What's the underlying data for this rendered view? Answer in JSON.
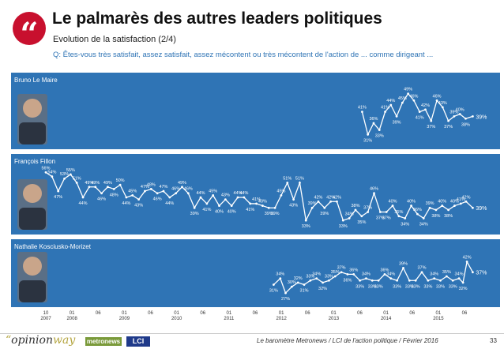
{
  "header": {
    "quote_glyph": "“",
    "title": "Le palmarès des autres leaders politiques",
    "subtitle": "Evolution de la satisfaction (2/4)",
    "question": "Q: Êtes-vous très satisfait, assez satisfait, assez mécontent ou très mécontent de l'action de ... comme dirigeant ..."
  },
  "footer": {
    "logo_opinionway_prefix": "“",
    "logo_opinionway_a": "opinion",
    "logo_opinionway_b": "way",
    "logo_metronews": "metronews",
    "logo_lci": "LCI",
    "source": "Le baromètre Metronews / LCI de l'action politique / Février 2016",
    "page": "33"
  },
  "colors": {
    "panel_bg": "#2f74b5",
    "line": "#ffffff",
    "value_text": "#2f74b5",
    "last_value_text": "#2f74b5",
    "accent": "#c8102e"
  },
  "chart_data": {
    "type": "line",
    "x_ticks": [
      {
        "top": "10",
        "bottom": "2007"
      },
      {
        "top": "01",
        "bottom": "2008"
      },
      {
        "top": "06",
        "bottom": ""
      },
      {
        "top": "01",
        "bottom": "2009"
      },
      {
        "top": "06",
        "bottom": ""
      },
      {
        "top": "01",
        "bottom": "2010"
      },
      {
        "top": "06",
        "bottom": ""
      },
      {
        "top": "01",
        "bottom": "2011"
      },
      {
        "top": "06",
        "bottom": ""
      },
      {
        "top": "01",
        "bottom": "2012"
      },
      {
        "top": "06",
        "bottom": ""
      },
      {
        "top": "01",
        "bottom": "2013"
      },
      {
        "top": "06",
        "bottom": ""
      },
      {
        "top": "01",
        "bottom": "2014"
      },
      {
        "top": "06",
        "bottom": ""
      },
      {
        "top": "01",
        "bottom": "2015"
      },
      {
        "top": "06",
        "bottom": ""
      }
    ],
    "x_range": [
      0,
      100
    ],
    "panels": [
      {
        "name": "Bruno Le Maire",
        "ylim": [
          28,
          52
        ],
        "points": [
          {
            "x": 71.5,
            "v": 41,
            "label": "41%"
          },
          {
            "x": 72.8,
            "v": 31,
            "label": "31%"
          },
          {
            "x": 74.1,
            "v": 36,
            "label": "36%"
          },
          {
            "x": 75.4,
            "v": 33,
            "label": "33%"
          },
          {
            "x": 76.7,
            "v": 41,
            "label": "41%"
          },
          {
            "x": 78.0,
            "v": 44,
            "label": "44%"
          },
          {
            "x": 79.3,
            "v": 39,
            "label": "39%"
          },
          {
            "x": 80.6,
            "v": 45,
            "label": "45%"
          },
          {
            "x": 81.9,
            "v": 49,
            "label": "49%"
          },
          {
            "x": 83.2,
            "v": 46,
            "label": "46%"
          },
          {
            "x": 84.5,
            "v": 41,
            "label": "41%"
          },
          {
            "x": 85.8,
            "v": 42,
            "label": "42%"
          },
          {
            "x": 87.1,
            "v": 37,
            "label": "37%"
          },
          {
            "x": 88.4,
            "v": 46,
            "label": "46%"
          },
          {
            "x": 89.7,
            "v": 43,
            "label": "43%"
          },
          {
            "x": 91.0,
            "v": 37,
            "label": "37%"
          },
          {
            "x": 92.3,
            "v": 39,
            "label": "39%"
          },
          {
            "x": 93.6,
            "v": 40,
            "label": "40%"
          },
          {
            "x": 94.9,
            "v": 38,
            "label": "38%"
          },
          {
            "x": 96.5,
            "v": 39,
            "label": "39%"
          }
        ]
      },
      {
        "name": "François Fillon",
        "ylim": [
          30,
          58
        ],
        "points": [
          {
            "x": 0.0,
            "v": 56,
            "label": "56%"
          },
          {
            "x": 1.4,
            "v": 54,
            "label": "54%"
          },
          {
            "x": 2.8,
            "v": 47,
            "label": "47%"
          },
          {
            "x": 4.2,
            "v": 53,
            "label": "53%"
          },
          {
            "x": 5.6,
            "v": 55,
            "label": "55%"
          },
          {
            "x": 7.0,
            "v": 51,
            "label": "51%"
          },
          {
            "x": 8.4,
            "v": 44,
            "label": "44%"
          },
          {
            "x": 9.8,
            "v": 49,
            "label": "49%"
          },
          {
            "x": 11.2,
            "v": 49,
            "label": "49%"
          },
          {
            "x": 12.6,
            "v": 46,
            "label": "46%"
          },
          {
            "x": 14.0,
            "v": 49,
            "label": "49%"
          },
          {
            "x": 15.4,
            "v": 48,
            "label": "48%"
          },
          {
            "x": 16.8,
            "v": 50,
            "label": "50%"
          },
          {
            "x": 18.2,
            "v": 44,
            "label": "44%"
          },
          {
            "x": 19.6,
            "v": 45,
            "label": "45%"
          },
          {
            "x": 21.0,
            "v": 43,
            "label": "43%"
          },
          {
            "x": 22.4,
            "v": 47,
            "label": "47%"
          },
          {
            "x": 23.8,
            "v": 48,
            "label": "48%"
          },
          {
            "x": 25.2,
            "v": 46,
            "label": "46%"
          },
          {
            "x": 26.6,
            "v": 47,
            "label": "47%"
          },
          {
            "x": 28.0,
            "v": 44,
            "label": "44%"
          },
          {
            "x": 29.4,
            "v": 46,
            "label": "46%"
          },
          {
            "x": 30.8,
            "v": 49,
            "label": "49%"
          },
          {
            "x": 32.2,
            "v": 46,
            "label": "46%"
          },
          {
            "x": 33.6,
            "v": 39,
            "label": "39%"
          },
          {
            "x": 35.0,
            "v": 44,
            "label": "44%"
          },
          {
            "x": 36.4,
            "v": 41,
            "label": "41%"
          },
          {
            "x": 37.8,
            "v": 45,
            "label": "45%"
          },
          {
            "x": 39.2,
            "v": 40,
            "label": "40%"
          },
          {
            "x": 40.6,
            "v": 43,
            "label": "43%"
          },
          {
            "x": 42.0,
            "v": 40,
            "label": "40%"
          },
          {
            "x": 43.4,
            "v": 44,
            "label": "44%"
          },
          {
            "x": 44.8,
            "v": 44,
            "label": "44%"
          },
          {
            "x": 46.2,
            "v": 41,
            "label": "41%"
          },
          {
            "x": 47.6,
            "v": 41,
            "label": "41%"
          },
          {
            "x": 49.0,
            "v": 40,
            "label": "40%"
          },
          {
            "x": 50.4,
            "v": 39,
            "label": "39%"
          },
          {
            "x": 51.8,
            "v": 39,
            "label": "39%"
          },
          {
            "x": 53.2,
            "v": 45,
            "label": "45%"
          },
          {
            "x": 54.6,
            "v": 51,
            "label": "51%"
          },
          {
            "x": 56.0,
            "v": 43,
            "label": "43%"
          },
          {
            "x": 57.4,
            "v": 51,
            "label": "51%"
          },
          {
            "x": 58.8,
            "v": 33,
            "label": "33%"
          },
          {
            "x": 60.2,
            "v": 39,
            "label": "39%"
          },
          {
            "x": 61.6,
            "v": 42,
            "label": "42%"
          },
          {
            "x": 63.0,
            "v": 39,
            "label": "39%"
          },
          {
            "x": 64.4,
            "v": 42,
            "label": "42%"
          },
          {
            "x": 65.8,
            "v": 42,
            "label": "42%"
          },
          {
            "x": 67.2,
            "v": 33,
            "label": "33%"
          },
          {
            "x": 68.6,
            "v": 34,
            "label": "34%"
          },
          {
            "x": 70.0,
            "v": 38,
            "label": "38%"
          },
          {
            "x": 71.4,
            "v": 35,
            "label": "35%"
          },
          {
            "x": 72.8,
            "v": 37,
            "label": "37%"
          },
          {
            "x": 74.2,
            "v": 46,
            "label": "46%"
          },
          {
            "x": 75.6,
            "v": 37,
            "label": "37%"
          },
          {
            "x": 77.0,
            "v": 37,
            "label": "37%"
          },
          {
            "x": 78.4,
            "v": 40,
            "label": "40%"
          },
          {
            "x": 79.8,
            "v": 35,
            "label": "35%"
          },
          {
            "x": 81.2,
            "v": 34,
            "label": "34%"
          },
          {
            "x": 82.6,
            "v": 40,
            "label": "40%"
          },
          {
            "x": 84.0,
            "v": 36,
            "label": "36%"
          },
          {
            "x": 85.4,
            "v": 34,
            "label": "34%"
          },
          {
            "x": 86.8,
            "v": 39,
            "label": "39%"
          },
          {
            "x": 88.2,
            "v": 38,
            "label": "38%"
          },
          {
            "x": 89.6,
            "v": 40,
            "label": "40%"
          },
          {
            "x": 91.0,
            "v": 38,
            "label": "38%"
          },
          {
            "x": 92.4,
            "v": 40,
            "label": "40%"
          },
          {
            "x": 93.8,
            "v": 41,
            "label": "41%"
          },
          {
            "x": 95.0,
            "v": 42,
            "label": "42%"
          },
          {
            "x": 96.5,
            "v": 39,
            "label": "39%"
          }
        ]
      },
      {
        "name": "Nathalie Kosciusko-Morizet",
        "ylim": [
          24,
          46
        ],
        "points": [
          {
            "x": 51.5,
            "v": 31,
            "label": "31%"
          },
          {
            "x": 53.0,
            "v": 34,
            "label": "34%"
          },
          {
            "x": 54.2,
            "v": 27,
            "label": "27%"
          },
          {
            "x": 55.6,
            "v": 30,
            "label": "30%"
          },
          {
            "x": 57.0,
            "v": 32,
            "label": "32%"
          },
          {
            "x": 58.4,
            "v": 31,
            "label": "31%"
          },
          {
            "x": 59.8,
            "v": 33,
            "label": "33%"
          },
          {
            "x": 61.2,
            "v": 34,
            "label": "34%"
          },
          {
            "x": 62.6,
            "v": 32,
            "label": "32%"
          },
          {
            "x": 64.0,
            "v": 33,
            "label": "33%"
          },
          {
            "x": 65.4,
            "v": 35,
            "label": "35%"
          },
          {
            "x": 66.8,
            "v": 37,
            "label": "37%"
          },
          {
            "x": 68.2,
            "v": 36,
            "label": "36%"
          },
          {
            "x": 69.6,
            "v": 36,
            "label": "36%"
          },
          {
            "x": 71.0,
            "v": 33,
            "label": "33%"
          },
          {
            "x": 72.4,
            "v": 34,
            "label": "34%"
          },
          {
            "x": 73.8,
            "v": 33,
            "label": "33%"
          },
          {
            "x": 75.2,
            "v": 33,
            "label": "33%"
          },
          {
            "x": 76.6,
            "v": 36,
            "label": "36%"
          },
          {
            "x": 78.0,
            "v": 34,
            "label": "34%"
          },
          {
            "x": 79.4,
            "v": 33,
            "label": "33%"
          },
          {
            "x": 80.8,
            "v": 39,
            "label": "39%"
          },
          {
            "x": 82.2,
            "v": 33,
            "label": "33%"
          },
          {
            "x": 83.6,
            "v": 33,
            "label": "33%"
          },
          {
            "x": 85.0,
            "v": 37,
            "label": "37%"
          },
          {
            "x": 86.4,
            "v": 33,
            "label": "33%"
          },
          {
            "x": 87.8,
            "v": 34,
            "label": "34%"
          },
          {
            "x": 89.2,
            "v": 33,
            "label": "33%"
          },
          {
            "x": 90.6,
            "v": 35,
            "label": "35%"
          },
          {
            "x": 92.0,
            "v": 33,
            "label": "33%"
          },
          {
            "x": 93.4,
            "v": 34,
            "label": "34%"
          },
          {
            "x": 94.3,
            "v": 32,
            "label": "32%"
          },
          {
            "x": 95.2,
            "v": 42,
            "label": "42%"
          },
          {
            "x": 96.5,
            "v": 37,
            "label": "37%"
          }
        ]
      }
    ]
  }
}
